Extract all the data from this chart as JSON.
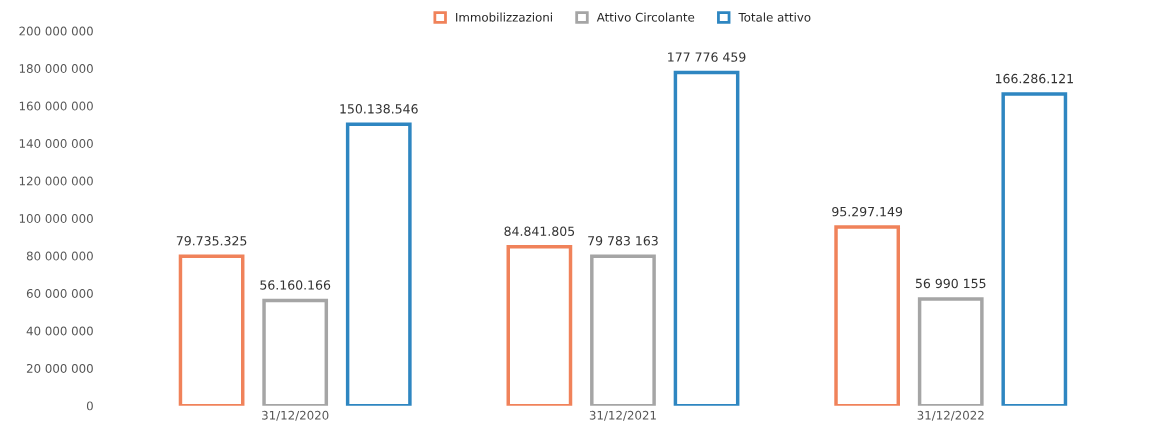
{
  "chart_data": {
    "type": "bar",
    "categories": [
      "31/12/2020",
      "31/12/2021",
      "31/12/2022"
    ],
    "series": [
      {
        "name": "Immobilizzazioni",
        "color": "#f0825a",
        "values": [
          79735325,
          84841805,
          95297149
        ],
        "value_labels": [
          "79.735.325",
          "84.841.805",
          "95.297.149"
        ]
      },
      {
        "name": "Attivo Circolante",
        "color": "#a5a5a5",
        "values": [
          56160166,
          79783163,
          56990155
        ],
        "value_labels": [
          "56.160.166",
          "79 783 163",
          "56 990 155"
        ]
      },
      {
        "name": "Totale attivo",
        "color": "#2e86c1",
        "values": [
          150138546,
          177776459,
          166286121
        ],
        "value_labels": [
          "150.138.546",
          "177 776 459",
          "166.286.121"
        ]
      }
    ],
    "ylim": [
      0,
      200000000
    ],
    "yticks": [
      {
        "value": 0,
        "label": "0"
      },
      {
        "value": 20000000,
        "label": "20 000 000"
      },
      {
        "value": 40000000,
        "label": "40 000 000"
      },
      {
        "value": 60000000,
        "label": "60 000 000"
      },
      {
        "value": 80000000,
        "label": "80 000 000"
      },
      {
        "value": 100000000,
        "label": "100 000 000"
      },
      {
        "value": 120000000,
        "label": "120 000 000"
      },
      {
        "value": 140000000,
        "label": "140 000 000"
      },
      {
        "value": 160000000,
        "label": "160 000 000"
      },
      {
        "value": 180000000,
        "label": "180 000 000"
      },
      {
        "value": 200000000,
        "label": "200 000 000"
      }
    ],
    "grid": false,
    "legend": "top"
  }
}
